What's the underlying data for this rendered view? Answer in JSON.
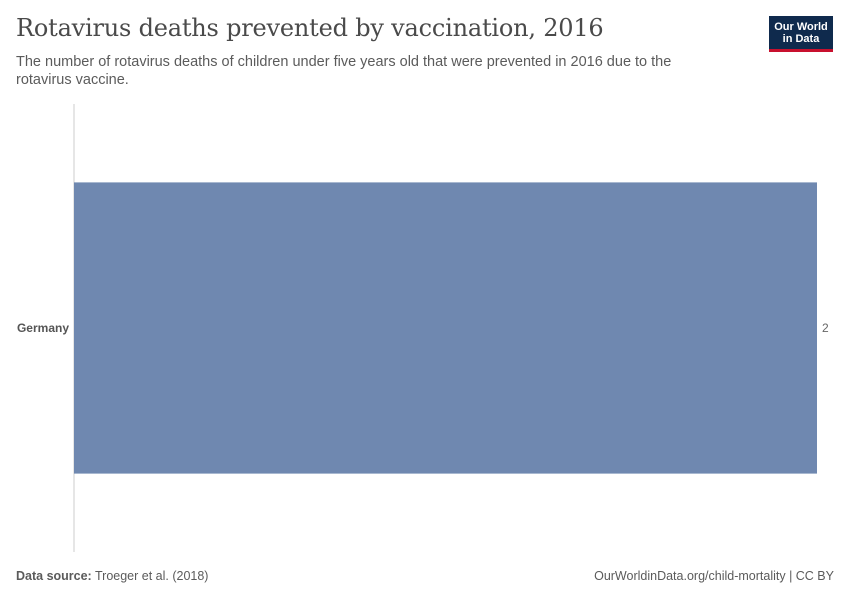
{
  "header": {
    "title": "Rotavirus deaths prevented by vaccination, 2016",
    "subtitle": "The number of rotavirus deaths of children under five years old that were prevented in 2016 due to the rotavirus vaccine.",
    "logo_line1": "Our World",
    "logo_line2": "in Data"
  },
  "footer": {
    "source_label": "Data source:",
    "source_value": "Troeger et al. (2018)",
    "url": "OurWorldinData.org/child-mortality | CC BY"
  },
  "colors": {
    "bar": "#6f88b0",
    "axis": "#cccccc",
    "logo_bg": "#0f2a4d",
    "logo_accent": "#c8102e"
  },
  "chart_data": {
    "type": "bar",
    "orientation": "horizontal",
    "categories": [
      "Germany"
    ],
    "values": [
      2
    ],
    "value_labels": [
      "2"
    ],
    "xlim": [
      0,
      2
    ]
  }
}
